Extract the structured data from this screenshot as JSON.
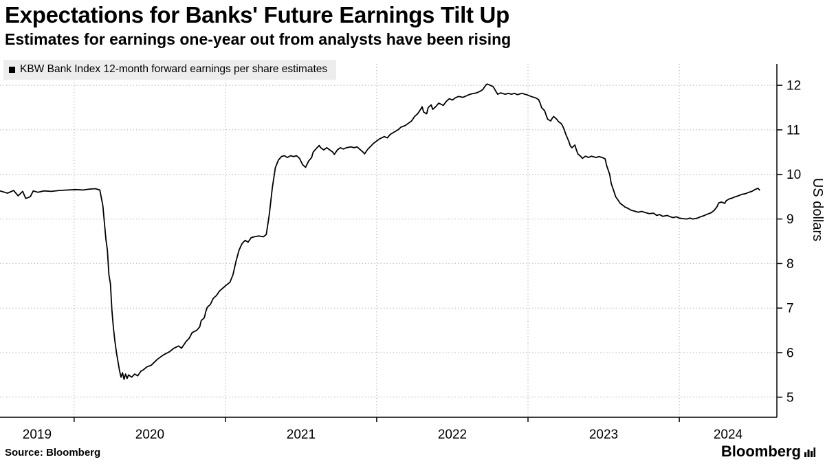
{
  "footer": {
    "source": "Source: Bloomberg",
    "brand": "Bloomberg"
  },
  "colors": {
    "line": "#000000",
    "grid": "#b5b5b5",
    "legend_bg": "#ededed"
  },
  "chart_data": {
    "type": "line",
    "title": "Expectations for Banks' Future Earnings Tilt Up",
    "subtitle": "Estimates for earnings one-year out from analysts have been rising",
    "ylabel": "US dollars",
    "legend_position": "top-left",
    "grid": "dotted",
    "x_domain": [
      2019.51,
      2024.645
    ],
    "ylim": [
      4.55,
      12.48
    ],
    "y_ticks": [
      5,
      6,
      7,
      8,
      9,
      10,
      11,
      12
    ],
    "x_tick_years": [
      2019,
      2020,
      2021,
      2022,
      2023,
      2024
    ],
    "series": [
      {
        "name": "KBW Bank Index 12-month forward earnings per share estimates",
        "color": "#000000",
        "points": [
          [
            2019.51,
            9.63
          ],
          [
            2019.56,
            9.58
          ],
          [
            2019.6,
            9.64
          ],
          [
            2019.63,
            9.52
          ],
          [
            2019.66,
            9.62
          ],
          [
            2019.68,
            9.46
          ],
          [
            2019.71,
            9.5
          ],
          [
            2019.73,
            9.63
          ],
          [
            2019.76,
            9.6
          ],
          [
            2019.8,
            9.63
          ],
          [
            2019.85,
            9.62
          ],
          [
            2019.9,
            9.64
          ],
          [
            2019.96,
            9.65
          ],
          [
            2020.01,
            9.66
          ],
          [
            2020.06,
            9.65
          ],
          [
            2020.1,
            9.67
          ],
          [
            2020.14,
            9.68
          ],
          [
            2020.17,
            9.65
          ],
          [
            2020.19,
            9.3
          ],
          [
            2020.21,
            8.55
          ],
          [
            2020.22,
            8.3
          ],
          [
            2020.23,
            7.75
          ],
          [
            2020.24,
            7.55
          ],
          [
            2020.25,
            6.95
          ],
          [
            2020.26,
            6.55
          ],
          [
            2020.27,
            6.25
          ],
          [
            2020.28,
            6.0
          ],
          [
            2020.29,
            5.8
          ],
          [
            2020.3,
            5.6
          ],
          [
            2020.31,
            5.45
          ],
          [
            2020.32,
            5.55
          ],
          [
            2020.33,
            5.4
          ],
          [
            2020.34,
            5.52
          ],
          [
            2020.35,
            5.42
          ],
          [
            2020.36,
            5.5
          ],
          [
            2020.38,
            5.45
          ],
          [
            2020.4,
            5.52
          ],
          [
            2020.42,
            5.48
          ],
          [
            2020.44,
            5.58
          ],
          [
            2020.46,
            5.62
          ],
          [
            2020.48,
            5.68
          ],
          [
            2020.51,
            5.72
          ],
          [
            2020.55,
            5.85
          ],
          [
            2020.59,
            5.95
          ],
          [
            2020.63,
            6.02
          ],
          [
            2020.66,
            6.1
          ],
          [
            2020.69,
            6.15
          ],
          [
            2020.71,
            6.1
          ],
          [
            2020.74,
            6.25
          ],
          [
            2020.76,
            6.32
          ],
          [
            2020.78,
            6.45
          ],
          [
            2020.81,
            6.5
          ],
          [
            2020.83,
            6.58
          ],
          [
            2020.84,
            6.72
          ],
          [
            2020.86,
            6.78
          ],
          [
            2020.87,
            6.92
          ],
          [
            2020.88,
            7.02
          ],
          [
            2020.9,
            7.08
          ],
          [
            2020.91,
            7.15
          ],
          [
            2020.92,
            7.22
          ],
          [
            2020.94,
            7.28
          ],
          [
            2020.96,
            7.38
          ],
          [
            2020.98,
            7.44
          ],
          [
            2021.0,
            7.5
          ],
          [
            2021.03,
            7.58
          ],
          [
            2021.05,
            7.75
          ],
          [
            2021.07,
            8.05
          ],
          [
            2021.09,
            8.3
          ],
          [
            2021.11,
            8.45
          ],
          [
            2021.13,
            8.52
          ],
          [
            2021.15,
            8.48
          ],
          [
            2021.17,
            8.58
          ],
          [
            2021.19,
            8.6
          ],
          [
            2021.22,
            8.62
          ],
          [
            2021.25,
            8.6
          ],
          [
            2021.27,
            8.65
          ],
          [
            2021.29,
            9.1
          ],
          [
            2021.31,
            9.7
          ],
          [
            2021.33,
            10.15
          ],
          [
            2021.35,
            10.32
          ],
          [
            2021.37,
            10.4
          ],
          [
            2021.39,
            10.42
          ],
          [
            2021.41,
            10.38
          ],
          [
            2021.43,
            10.42
          ],
          [
            2021.45,
            10.4
          ],
          [
            2021.47,
            10.42
          ],
          [
            2021.49,
            10.36
          ],
          [
            2021.51,
            10.22
          ],
          [
            2021.53,
            10.16
          ],
          [
            2021.55,
            10.3
          ],
          [
            2021.57,
            10.38
          ],
          [
            2021.58,
            10.5
          ],
          [
            2021.6,
            10.58
          ],
          [
            2021.62,
            10.65
          ],
          [
            2021.63,
            10.6
          ],
          [
            2021.65,
            10.55
          ],
          [
            2021.67,
            10.6
          ],
          [
            2021.69,
            10.55
          ],
          [
            2021.71,
            10.5
          ],
          [
            2021.72,
            10.45
          ],
          [
            2021.74,
            10.55
          ],
          [
            2021.76,
            10.6
          ],
          [
            2021.78,
            10.57
          ],
          [
            2021.8,
            10.6
          ],
          [
            2021.83,
            10.62
          ],
          [
            2021.85,
            10.6
          ],
          [
            2021.87,
            10.62
          ],
          [
            2021.89,
            10.56
          ],
          [
            2021.91,
            10.5
          ],
          [
            2021.92,
            10.46
          ],
          [
            2021.94,
            10.56
          ],
          [
            2021.96,
            10.63
          ],
          [
            2021.98,
            10.7
          ],
          [
            2022.0,
            10.75
          ],
          [
            2022.02,
            10.8
          ],
          [
            2022.05,
            10.85
          ],
          [
            2022.07,
            10.82
          ],
          [
            2022.09,
            10.9
          ],
          [
            2022.12,
            10.96
          ],
          [
            2022.14,
            11.0
          ],
          [
            2022.16,
            11.06
          ],
          [
            2022.19,
            11.1
          ],
          [
            2022.21,
            11.15
          ],
          [
            2022.23,
            11.2
          ],
          [
            2022.25,
            11.3
          ],
          [
            2022.27,
            11.36
          ],
          [
            2022.29,
            11.46
          ],
          [
            2022.3,
            11.52
          ],
          [
            2022.31,
            11.4
          ],
          [
            2022.33,
            11.36
          ],
          [
            2022.34,
            11.5
          ],
          [
            2022.36,
            11.56
          ],
          [
            2022.37,
            11.46
          ],
          [
            2022.39,
            11.52
          ],
          [
            2022.41,
            11.6
          ],
          [
            2022.44,
            11.55
          ],
          [
            2022.46,
            11.64
          ],
          [
            2022.48,
            11.7
          ],
          [
            2022.5,
            11.67
          ],
          [
            2022.52,
            11.72
          ],
          [
            2022.54,
            11.75
          ],
          [
            2022.57,
            11.73
          ],
          [
            2022.59,
            11.76
          ],
          [
            2022.61,
            11.79
          ],
          [
            2022.63,
            11.81
          ],
          [
            2022.66,
            11.83
          ],
          [
            2022.68,
            11.86
          ],
          [
            2022.7,
            11.9
          ],
          [
            2022.72,
            12.0
          ],
          [
            2022.73,
            12.03
          ],
          [
            2022.75,
            12.0
          ],
          [
            2022.77,
            11.97
          ],
          [
            2022.79,
            11.85
          ],
          [
            2022.8,
            11.8
          ],
          [
            2022.82,
            11.83
          ],
          [
            2022.85,
            11.8
          ],
          [
            2022.87,
            11.82
          ],
          [
            2022.89,
            11.8
          ],
          [
            2022.91,
            11.82
          ],
          [
            2022.93,
            11.79
          ],
          [
            2022.96,
            11.82
          ],
          [
            2022.98,
            11.8
          ],
          [
            2023.0,
            11.78
          ],
          [
            2023.02,
            11.75
          ],
          [
            2023.05,
            11.72
          ],
          [
            2023.07,
            11.68
          ],
          [
            2023.08,
            11.6
          ],
          [
            2023.09,
            11.5
          ],
          [
            2023.11,
            11.43
          ],
          [
            2023.12,
            11.33
          ],
          [
            2023.13,
            11.24
          ],
          [
            2023.15,
            11.2
          ],
          [
            2023.16,
            11.26
          ],
          [
            2023.17,
            11.3
          ],
          [
            2023.19,
            11.24
          ],
          [
            2023.2,
            11.19
          ],
          [
            2023.22,
            11.14
          ],
          [
            2023.23,
            11.08
          ],
          [
            2023.24,
            11.0
          ],
          [
            2023.25,
            10.9
          ],
          [
            2023.27,
            10.74
          ],
          [
            2023.28,
            10.64
          ],
          [
            2023.29,
            10.6
          ],
          [
            2023.31,
            10.66
          ],
          [
            2023.32,
            10.55
          ],
          [
            2023.33,
            10.46
          ],
          [
            2023.35,
            10.4
          ],
          [
            2023.36,
            10.36
          ],
          [
            2023.38,
            10.41
          ],
          [
            2023.4,
            10.38
          ],
          [
            2023.42,
            10.41
          ],
          [
            2023.45,
            10.38
          ],
          [
            2023.47,
            10.4
          ],
          [
            2023.49,
            10.38
          ],
          [
            2023.51,
            10.35
          ],
          [
            2023.52,
            10.2
          ],
          [
            2023.54,
            10.0
          ],
          [
            2023.55,
            9.8
          ],
          [
            2023.57,
            9.6
          ],
          [
            2023.58,
            9.5
          ],
          [
            2023.6,
            9.4
          ],
          [
            2023.61,
            9.35
          ],
          [
            2023.63,
            9.3
          ],
          [
            2023.64,
            9.27
          ],
          [
            2023.66,
            9.24
          ],
          [
            2023.68,
            9.2
          ],
          [
            2023.71,
            9.17
          ],
          [
            2023.73,
            9.15
          ],
          [
            2023.75,
            9.17
          ],
          [
            2023.78,
            9.14
          ],
          [
            2023.8,
            9.12
          ],
          [
            2023.83,
            9.13
          ],
          [
            2023.85,
            9.08
          ],
          [
            2023.87,
            9.1
          ],
          [
            2023.89,
            9.06
          ],
          [
            2023.92,
            9.08
          ],
          [
            2023.94,
            9.05
          ],
          [
            2023.96,
            9.03
          ],
          [
            2023.98,
            9.05
          ],
          [
            2024.0,
            9.02
          ],
          [
            2024.02,
            9.01
          ],
          [
            2024.05,
            9.0
          ],
          [
            2024.07,
            9.02
          ],
          [
            2024.09,
            9.0
          ],
          [
            2024.12,
            9.02
          ],
          [
            2024.14,
            9.05
          ],
          [
            2024.16,
            9.07
          ],
          [
            2024.18,
            9.1
          ],
          [
            2024.21,
            9.14
          ],
          [
            2024.23,
            9.19
          ],
          [
            2024.25,
            9.28
          ],
          [
            2024.26,
            9.36
          ],
          [
            2024.28,
            9.38
          ],
          [
            2024.3,
            9.35
          ],
          [
            2024.31,
            9.41
          ],
          [
            2024.33,
            9.45
          ],
          [
            2024.35,
            9.47
          ],
          [
            2024.37,
            9.5
          ],
          [
            2024.39,
            9.52
          ],
          [
            2024.41,
            9.55
          ],
          [
            2024.44,
            9.57
          ],
          [
            2024.46,
            9.6
          ],
          [
            2024.48,
            9.62
          ],
          [
            2024.5,
            9.66
          ],
          [
            2024.52,
            9.69
          ],
          [
            2024.53,
            9.65
          ]
        ]
      }
    ]
  }
}
